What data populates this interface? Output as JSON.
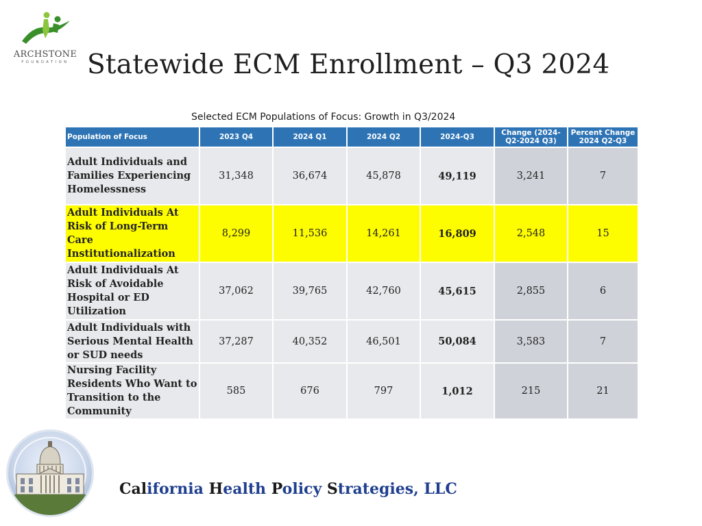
{
  "logo": {
    "name": "ARCHSTONE",
    "subtitle": "FOUNDATION"
  },
  "title": "Statewide ECM Enrollment – Q3 2024",
  "table": {
    "caption": "Selected ECM Populations of Focus:  Growth in Q3/2024",
    "headers": [
      "Population of Focus",
      "2023 Q4",
      "2024 Q1",
      "2024 Q2",
      "2024-Q3",
      "Change (2024-Q2-2024 Q3)",
      "Percent Change 2024 Q2-Q3"
    ],
    "rows": [
      {
        "population": "Adult Individuals and Families Experiencing Homelessness",
        "q4_2023": "31,348",
        "q1_2024": "36,674",
        "q2_2024": "45,878",
        "q3_2024": "49,119",
        "change": "3,241",
        "percent": "7",
        "highlighted": false
      },
      {
        "population": "Adult Individuals At Risk of Long-Term Care Institutionalization",
        "q4_2023": "8,299",
        "q1_2024": "11,536",
        "q2_2024": "14,261",
        "q3_2024": "16,809",
        "change": "2,548",
        "percent": "15",
        "highlighted": true
      },
      {
        "population": "Adult Individuals At Risk of Avoidable Hospital or ED Utilization",
        "q4_2023": "37,062",
        "q1_2024": "39,765",
        "q2_2024": "42,760",
        "q3_2024": "45,615",
        "change": "2,855",
        "percent": "6",
        "highlighted": false
      },
      {
        "population": "Adult Individuals with Serious Mental Health or SUD needs",
        "q4_2023": "37,287",
        "q1_2024": "40,352",
        "q2_2024": "46,501",
        "q3_2024": "50,084",
        "change": "3,583",
        "percent": "7",
        "highlighted": false
      },
      {
        "population": "Nursing Facility Residents Who Want to Transition to the Community",
        "q4_2023": "585",
        "q1_2024": "676",
        "q2_2024": "797",
        "q3_2024": "1,012",
        "change": "215",
        "percent": "21",
        "highlighted": false
      }
    ]
  },
  "footer": {
    "parts": [
      {
        "cap": "Cal",
        "rest": "ifornia "
      },
      {
        "cap": "H",
        "rest": "ealth "
      },
      {
        "cap": "P",
        "rest": "olicy "
      },
      {
        "cap": "S",
        "rest": "trategies, LLC"
      }
    ]
  },
  "colors": {
    "header_blue": "#2e74b5",
    "highlight_yellow": "#fefd00",
    "cell_gray": "#e8e9ec",
    "footer_blue": "#1f3f8f",
    "logo_green": "#3a8f2b"
  },
  "icons": {
    "logo": "archstone-figures-icon",
    "seal": "capitol-dome-icon"
  }
}
